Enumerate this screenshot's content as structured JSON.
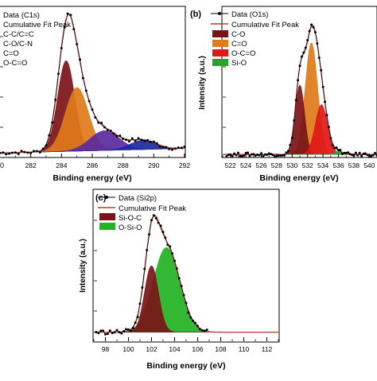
{
  "figure": {
    "background": "#ffffff"
  },
  "chart_data": [
    {
      "type": "area",
      "panel_label": "",
      "xlabel": "Binding energy (eV)",
      "ylabel": "",
      "xlim": [
        280,
        292
      ],
      "ylim": [
        0,
        1.0
      ],
      "x_ticks": [
        282,
        284,
        286,
        288,
        290,
        292
      ],
      "x_tick_labels": [
        "282",
        "284",
        "286",
        "288",
        "290",
        "292"
      ],
      "x_edge_label": "0",
      "legend_position": "top-left",
      "legend_entries": [
        "Data (C1s)",
        "Cumulative Fit Peak",
        "C-C/C=C",
        "C-O/C-N",
        "C=O",
        "O-C=O"
      ],
      "series": [
        {
          "name": "C-C/C=C",
          "type": "peak",
          "center": 284.3,
          "height": 0.6,
          "sigma": 0.55,
          "color": "#7a1418"
        },
        {
          "name": "C-O/C-N",
          "type": "peak",
          "center": 285.0,
          "height": 0.42,
          "sigma": 0.75,
          "color": "#e07a1a"
        },
        {
          "name": "C=O",
          "type": "peak",
          "center": 286.8,
          "height": 0.13,
          "sigma": 0.95,
          "color": "#5a2a9e"
        },
        {
          "name": "O-C=O",
          "type": "peak",
          "center": 289.3,
          "height": 0.06,
          "sigma": 0.85,
          "color": "#1a2aa0"
        }
      ],
      "baseline": {
        "start": 0.03,
        "end": 0.06
      },
      "data_series": {
        "name": "Data (C1s)",
        "x_start": 280,
        "x_end": 292,
        "step": 0.2,
        "noise": 0.012,
        "color": "#000000"
      },
      "fit_series": {
        "name": "Cumulative Fit Peak",
        "color": "#c0392b"
      }
    },
    {
      "type": "area",
      "panel_label": "(b)",
      "xlabel": "Binding energy (eV)",
      "ylabel": "Intensity (a.u.)",
      "xlim": [
        521,
        541
      ],
      "ylim": [
        0,
        1.0
      ],
      "x_ticks": [
        522,
        524,
        526,
        528,
        530,
        532,
        534,
        536,
        538,
        540
      ],
      "x_tick_labels": [
        "522",
        "524",
        "526",
        "528",
        "530",
        "532",
        "534",
        "536",
        "538",
        "540"
      ],
      "legend_position": "top-left",
      "legend_entries": [
        "Data (O1s)",
        "Cumulative Fit Peak",
        "C-O",
        "C=O",
        "O-C=O",
        "Si-O"
      ],
      "series": [
        {
          "name": "C-O",
          "type": "peak",
          "center": 531.0,
          "height": 0.46,
          "sigma": 0.6,
          "color": "#7a1418"
        },
        {
          "name": "C=O",
          "type": "peak",
          "center": 532.5,
          "height": 0.74,
          "sigma": 0.8,
          "color": "#e07a1a"
        },
        {
          "name": "O-C=O",
          "type": "peak",
          "center": 533.8,
          "height": 0.33,
          "sigma": 0.8,
          "color": "#e01818"
        },
        {
          "name": "Si-O",
          "type": "peak",
          "center": 536.0,
          "height": 0.02,
          "sigma": 0.5,
          "color": "#2ea02e"
        }
      ],
      "baseline": {
        "start": 0.02,
        "end": 0.02
      },
      "data_series": {
        "name": "Data (O1s)",
        "x_start": 521.5,
        "x_end": 541,
        "step": 0.25,
        "noise": 0.012,
        "color": "#000000"
      },
      "fit_series": {
        "name": "Cumulative Fit Peak",
        "color": "#c0392b"
      }
    },
    {
      "type": "area",
      "panel_label": "(c)",
      "xlabel": "Binding energy (eV)",
      "ylabel": "Intensity (a.u.)",
      "xlim": [
        97,
        113
      ],
      "ylim": [
        0,
        1.0
      ],
      "x_ticks": [
        98,
        100,
        102,
        104,
        106,
        108,
        110,
        112
      ],
      "x_tick_labels": [
        "98",
        "100",
        "102",
        "104",
        "106",
        "108",
        "110",
        "112"
      ],
      "legend_position": "top-left",
      "legend_entries": [
        "Data (Si2p)",
        "Cumulative Fit Peak",
        "Si-O-C",
        "O-Si-O"
      ],
      "series": [
        {
          "name": "Si-O-C",
          "type": "peak",
          "center": 102.0,
          "height": 0.44,
          "sigma": 0.6,
          "color": "#7a1418"
        },
        {
          "name": "O-Si-O",
          "type": "peak",
          "center": 103.3,
          "height": 0.56,
          "sigma": 1.15,
          "color": "#22b222"
        }
      ],
      "baseline": {
        "start": 0.06,
        "end": 0.06
      },
      "data_series": {
        "name": "Data (Si2p)",
        "x_start": 97.2,
        "x_end": 106.8,
        "step": 0.2,
        "noise": 0.015,
        "color": "#000000"
      },
      "fit_series": {
        "name": "Cumulative Fit Peak",
        "color": "#c0392b"
      }
    }
  ]
}
